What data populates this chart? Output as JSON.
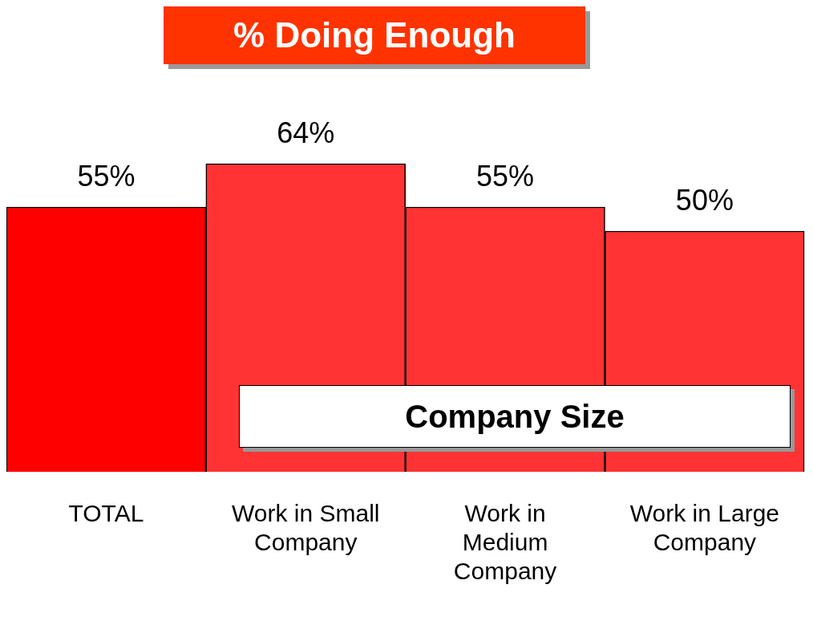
{
  "chart_data": {
    "type": "bar",
    "title": "% Doing Enough",
    "categories": [
      "TOTAL",
      "Work in Small Company",
      "Work in Medium Company",
      "Work in Large Company"
    ],
    "values": [
      55,
      64,
      55,
      50
    ],
    "colors": [
      "#ff0000",
      "#ff3333",
      "#ff3333",
      "#ff3333"
    ],
    "value_labels": [
      "55%",
      "64%",
      "55%",
      "50%"
    ],
    "annotations": [
      "Company Size"
    ],
    "grid": false,
    "legend": false
  }
}
